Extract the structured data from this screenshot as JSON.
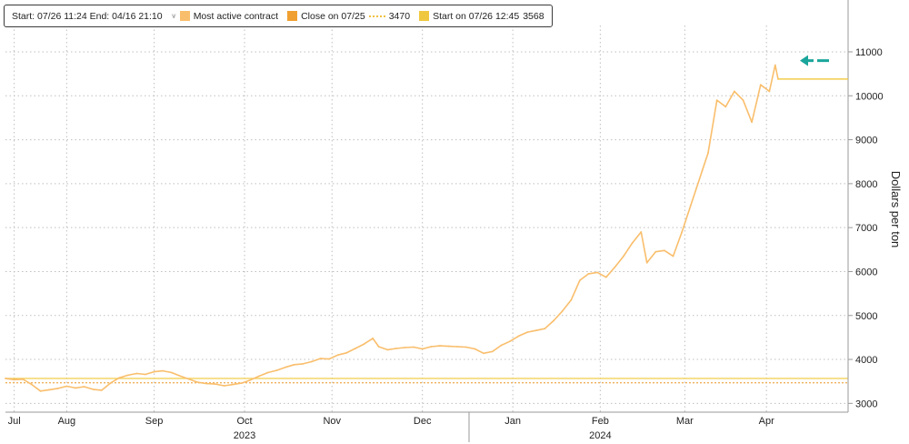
{
  "legend": {
    "range_text": "Start: 07/26 11:24 End: 04/16 21:10",
    "pin_glyph": "⩛",
    "series_label": "Most active contract",
    "close_label": "Close on 07/25",
    "close_value": "3470",
    "start_label": "Start on 07/26 12:45",
    "start_value": "3568"
  },
  "colors": {
    "series": "#f9be6c",
    "close_line": "#f0a94a",
    "start_line": "#f2cc4a",
    "arrow": "#1aa59b",
    "grid": "#bfbfbf",
    "axis": "#9a9a9a"
  },
  "chart_data": {
    "type": "line",
    "ylabel": "Dollars per ton",
    "ylim": [
      2800,
      11600
    ],
    "y_ticks": [
      3000,
      4000,
      5000,
      6000,
      7000,
      8000,
      9000,
      10000,
      11000
    ],
    "x_month_labels": [
      {
        "label": "Jul",
        "date": "2023-07-29"
      },
      {
        "label": "Aug",
        "date": "2023-08-16"
      },
      {
        "label": "Sep",
        "date": "2023-09-15"
      },
      {
        "label": "Oct",
        "date": "2023-10-16"
      },
      {
        "label": "Nov",
        "date": "2023-11-15"
      },
      {
        "label": "Dec",
        "date": "2023-12-16"
      },
      {
        "label": "Jan",
        "date": "2024-01-16"
      },
      {
        "label": "Feb",
        "date": "2024-02-15"
      },
      {
        "label": "Mar",
        "date": "2024-03-15"
      },
      {
        "label": "Apr",
        "date": "2024-04-12"
      }
    ],
    "x_year_labels": [
      {
        "label": "2023",
        "date": "2023-10-16"
      },
      {
        "label": "2024",
        "date": "2024-02-15"
      }
    ],
    "year_separator_date": "2024-01-01",
    "x_start": "2023-07-26",
    "x_end": "2024-05-10",
    "reference_lines": [
      {
        "name": "Close on 07/25",
        "value": 3470
      },
      {
        "name": "Start on 07/26 12:45",
        "value": 3568
      }
    ],
    "last_value": 10380,
    "series": [
      {
        "name": "Most active contract",
        "points": [
          [
            "2023-07-26",
            3568
          ],
          [
            "2023-07-29",
            3540
          ],
          [
            "2023-08-01",
            3550
          ],
          [
            "2023-08-04",
            3430
          ],
          [
            "2023-08-07",
            3280
          ],
          [
            "2023-08-10",
            3310
          ],
          [
            "2023-08-13",
            3340
          ],
          [
            "2023-08-16",
            3390
          ],
          [
            "2023-08-19",
            3350
          ],
          [
            "2023-08-22",
            3380
          ],
          [
            "2023-08-25",
            3320
          ],
          [
            "2023-08-28",
            3300
          ],
          [
            "2023-08-31",
            3460
          ],
          [
            "2023-09-03",
            3580
          ],
          [
            "2023-09-06",
            3640
          ],
          [
            "2023-09-09",
            3680
          ],
          [
            "2023-09-12",
            3660
          ],
          [
            "2023-09-15",
            3720
          ],
          [
            "2023-09-18",
            3740
          ],
          [
            "2023-09-21",
            3700
          ],
          [
            "2023-09-24",
            3620
          ],
          [
            "2023-09-27",
            3550
          ],
          [
            "2023-09-30",
            3480
          ],
          [
            "2023-10-03",
            3450
          ],
          [
            "2023-10-06",
            3440
          ],
          [
            "2023-10-09",
            3400
          ],
          [
            "2023-10-12",
            3430
          ],
          [
            "2023-10-15",
            3460
          ],
          [
            "2023-10-18",
            3530
          ],
          [
            "2023-10-21",
            3620
          ],
          [
            "2023-10-24",
            3700
          ],
          [
            "2023-10-27",
            3750
          ],
          [
            "2023-10-30",
            3820
          ],
          [
            "2023-11-02",
            3880
          ],
          [
            "2023-11-05",
            3900
          ],
          [
            "2023-11-08",
            3950
          ],
          [
            "2023-11-11",
            4020
          ],
          [
            "2023-11-14",
            4010
          ],
          [
            "2023-11-17",
            4100
          ],
          [
            "2023-11-20",
            4150
          ],
          [
            "2023-11-23",
            4250
          ],
          [
            "2023-11-26",
            4350
          ],
          [
            "2023-11-29",
            4480
          ],
          [
            "2023-12-01",
            4290
          ],
          [
            "2023-12-04",
            4220
          ],
          [
            "2023-12-07",
            4250
          ],
          [
            "2023-12-10",
            4270
          ],
          [
            "2023-12-13",
            4280
          ],
          [
            "2023-12-16",
            4240
          ],
          [
            "2023-12-19",
            4290
          ],
          [
            "2023-12-22",
            4310
          ],
          [
            "2023-12-25",
            4300
          ],
          [
            "2023-12-28",
            4290
          ],
          [
            "2023-12-31",
            4280
          ],
          [
            "2024-01-03",
            4240
          ],
          [
            "2024-01-06",
            4140
          ],
          [
            "2024-01-09",
            4180
          ],
          [
            "2024-01-12",
            4320
          ],
          [
            "2024-01-15",
            4410
          ],
          [
            "2024-01-18",
            4530
          ],
          [
            "2024-01-21",
            4620
          ],
          [
            "2024-01-24",
            4660
          ],
          [
            "2024-01-27",
            4700
          ],
          [
            "2024-01-30",
            4880
          ],
          [
            "2024-02-02",
            5100
          ],
          [
            "2024-02-05",
            5350
          ],
          [
            "2024-02-08",
            5800
          ],
          [
            "2024-02-11",
            5950
          ],
          [
            "2024-02-14",
            5980
          ],
          [
            "2024-02-17",
            5870
          ],
          [
            "2024-02-20",
            6100
          ],
          [
            "2024-02-23",
            6350
          ],
          [
            "2024-02-26",
            6650
          ],
          [
            "2024-02-29",
            6900
          ],
          [
            "2024-03-02",
            6200
          ],
          [
            "2024-03-05",
            6450
          ],
          [
            "2024-03-08",
            6480
          ],
          [
            "2024-03-11",
            6350
          ],
          [
            "2024-03-14",
            6900
          ],
          [
            "2024-03-17",
            7500
          ],
          [
            "2024-03-19",
            7900
          ],
          [
            "2024-03-21",
            8300
          ],
          [
            "2024-03-23",
            8700
          ],
          [
            "2024-03-26",
            9900
          ],
          [
            "2024-03-29",
            9750
          ],
          [
            "2024-04-01",
            10100
          ],
          [
            "2024-04-04",
            9900
          ],
          [
            "2024-04-07",
            9400
          ],
          [
            "2024-04-10",
            10250
          ],
          [
            "2024-04-13",
            10100
          ],
          [
            "2024-04-15",
            10700
          ],
          [
            "2024-04-16",
            10380
          ]
        ]
      }
    ]
  }
}
